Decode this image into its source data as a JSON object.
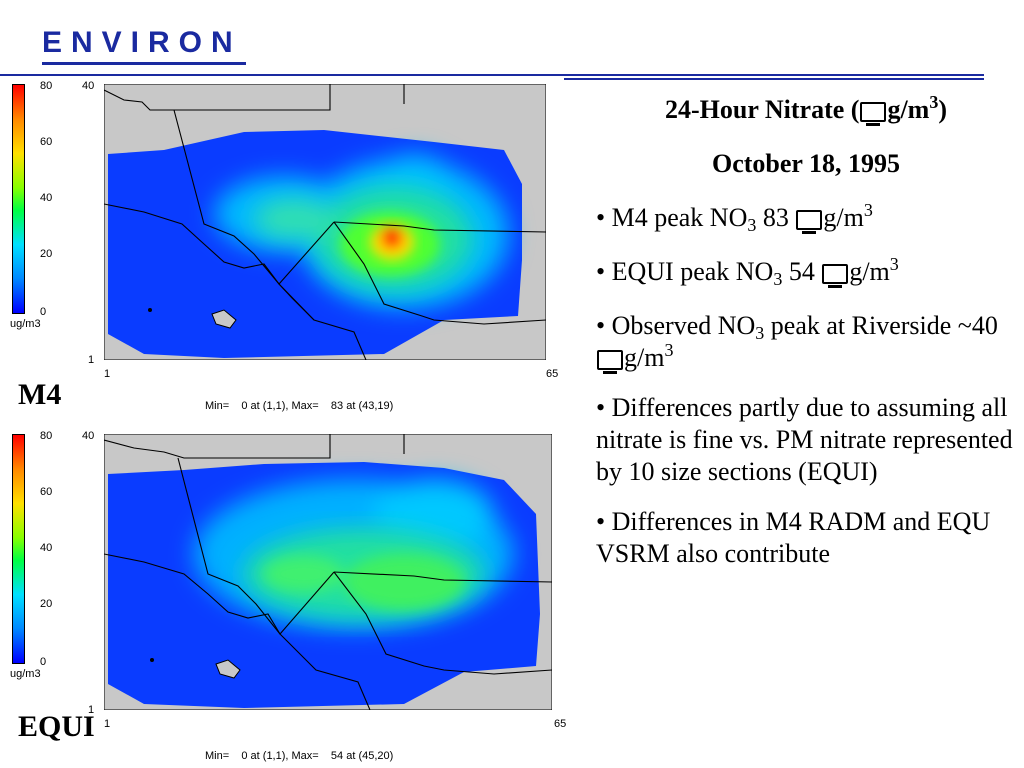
{
  "header": {
    "logo_text": "ENVIRON"
  },
  "maps": [
    {
      "label": "M4",
      "ticks": [
        "80",
        "60",
        "40",
        "20",
        "0"
      ],
      "unit": "ug/m3",
      "y_top": "40",
      "y_bottom": "1",
      "x_left": "1",
      "x_right": "65",
      "footer": "Min=    0 at (1,1), Max=    83 at (43,19)"
    },
    {
      "label": "EQUI",
      "ticks": [
        "80",
        "60",
        "40",
        "20",
        "0"
      ],
      "unit": "ug/m3",
      "y_top": "40",
      "y_bottom": "1",
      "x_left": "1",
      "x_right": "65",
      "footer": "Min=    0 at (1,1), Max=    54 at (45,20)"
    }
  ],
  "panel": {
    "title_prefix": "24-Hour Nitrate (",
    "title_unit": "g/m",
    "title_exp": "3",
    "title_suffix": ")",
    "date": "October 18, 1995",
    "b1_pre": "•  M4 peak NO",
    "b1_sub": "3",
    "b1_val": " 83 ",
    "b1_unit": "g/m",
    "b1_exp": "3",
    "b2_pre": "•  EQUI peak NO",
    "b2_sub": "3",
    "b2_val": " 54 ",
    "b2_unit": "g/m",
    "b2_exp": "3",
    "b3_pre": "• Observed NO",
    "b3_sub": "3",
    "b3_mid": " peak at Riverside ~40 ",
    "b3_unit": "g/m",
    "b3_exp": "3",
    "b4": "•  Differences partly due to assuming all nitrate is fine vs. PM nitrate represented by 10 size sections (EQUI)",
    "b5": "•  Differences in M4 RADM and EQU VSRM also contribute"
  }
}
